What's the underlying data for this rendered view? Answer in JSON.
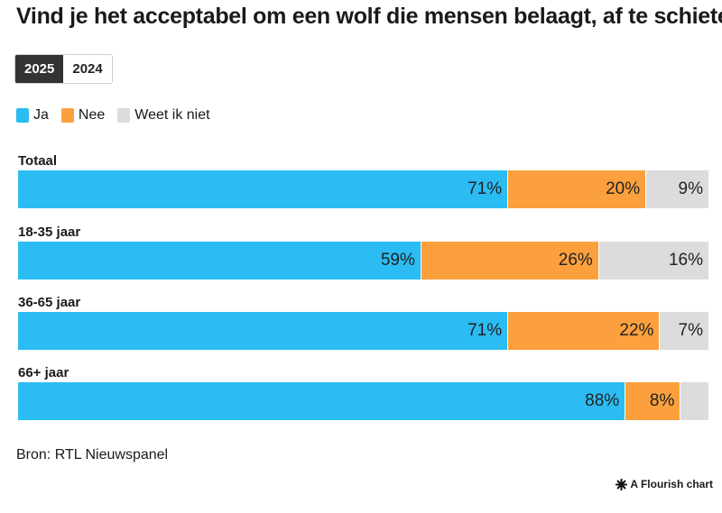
{
  "title": "Vind je het acceptabel om een wolf die mensen belaagt, af te schieten?",
  "tabs": [
    {
      "label": "2025",
      "active": true
    },
    {
      "label": "2024",
      "active": false
    }
  ],
  "colors": {
    "Ja": "#2bbcf3",
    "Nee": "#fba03d",
    "Weet ik niet": "#dcdcdc"
  },
  "source": "Bron: RTL Nieuwspanel",
  "credit": "A Flourish chart",
  "chart_data": {
    "type": "bar",
    "orientation": "horizontal-stacked",
    "categories": [
      "Totaal",
      "18-35 jaar",
      "36-65 jaar",
      "66+ jaar"
    ],
    "series": [
      {
        "name": "Ja",
        "values": [
          71,
          59,
          71,
          88
        ],
        "labels": [
          "71%",
          "59%",
          "71%",
          "88%"
        ]
      },
      {
        "name": "Nee",
        "values": [
          20,
          26,
          22,
          8
        ],
        "labels": [
          "20%",
          "26%",
          "22%",
          "8%"
        ]
      },
      {
        "name": "Weet ik niet",
        "values": [
          9,
          16,
          7,
          4
        ],
        "labels": [
          "9%",
          "16%",
          "7%",
          ""
        ]
      }
    ],
    "xlim": [
      0,
      100
    ],
    "legend": "top-left"
  }
}
